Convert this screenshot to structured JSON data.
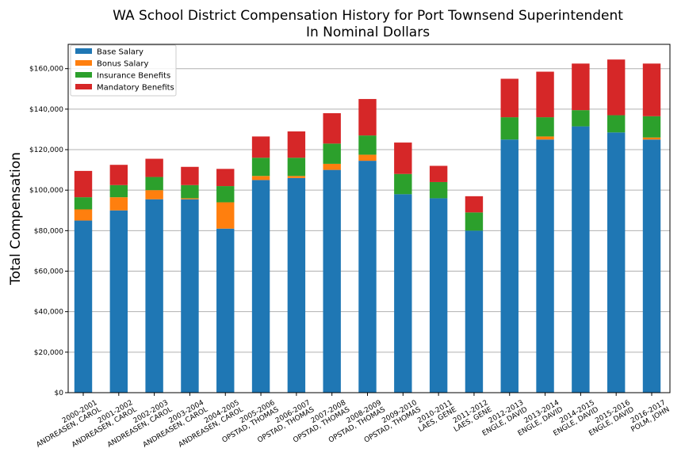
{
  "chart_data": {
    "type": "bar",
    "stacked": true,
    "title": "WA School District Compensation History for Port Townsend Superintendent",
    "subtitle": "In Nominal Dollars",
    "xlabel": "",
    "ylabel": "Total Compensation",
    "ylim": [
      0,
      172000
    ],
    "yticks": [
      0,
      20000,
      40000,
      60000,
      80000,
      100000,
      120000,
      140000,
      160000
    ],
    "ytick_labels": [
      "$0",
      "$20,000",
      "$40,000",
      "$60,000",
      "$80,000",
      "$100,000",
      "$120,000",
      "$140,000",
      "$160,000"
    ],
    "grid": "horizontal",
    "legend_position": "top-left",
    "categories": [
      [
        "2000-2001",
        "ANDREASEN, CAROL"
      ],
      [
        "2001-2002",
        "ANDREASEN, CAROL"
      ],
      [
        "2002-2003",
        "ANDREASEN, CAROL"
      ],
      [
        "2003-2004",
        "ANDREASEN, CAROL"
      ],
      [
        "2004-2005",
        "ANDREASEN, CAROL"
      ],
      [
        "2005-2006",
        "OPSTAD, THOMAS"
      ],
      [
        "2006-2007",
        "OPSTAD, THOMAS"
      ],
      [
        "2007-2008",
        "OPSTAD, THOMAS"
      ],
      [
        "2008-2009",
        "OPSTAD, THOMAS"
      ],
      [
        "2009-2010",
        "OPSTAD, THOMAS"
      ],
      [
        "2010-2011",
        "LAES, GENE"
      ],
      [
        "2011-2012",
        "LAES, GENE"
      ],
      [
        "2012-2013",
        "ENGLE, DAVID"
      ],
      [
        "2013-2014",
        "ENGLE, DAVID"
      ],
      [
        "2014-2015",
        "ENGLE, DAVID"
      ],
      [
        "2015-2016",
        "ENGLE, DAVID"
      ],
      [
        "2016-2017",
        "POLM, JOHN"
      ]
    ],
    "series": [
      {
        "name": "Base Salary",
        "color": "#1f77b4",
        "values": [
          85000,
          90000,
          95500,
          95500,
          81000,
          105000,
          106000,
          110000,
          114500,
          98000,
          96000,
          80000,
          125000,
          125000,
          131500,
          128500,
          125000
        ]
      },
      {
        "name": "Bonus Salary",
        "color": "#ff7f0e",
        "values": [
          5500,
          6500,
          4500,
          500,
          13000,
          2000,
          1000,
          3000,
          3000,
          0,
          0,
          0,
          0,
          1500,
          0,
          0,
          1000
        ]
      },
      {
        "name": "Insurance Benefits",
        "color": "#2ca02c",
        "values": [
          6000,
          6000,
          6500,
          6500,
          8000,
          9000,
          9000,
          10000,
          9500,
          10000,
          8000,
          9000,
          11000,
          9500,
          8000,
          8500,
          10500
        ]
      },
      {
        "name": "Mandatory Benefits",
        "color": "#d62728",
        "values": [
          13000,
          10000,
          9000,
          9000,
          8500,
          10500,
          13000,
          15000,
          18000,
          15500,
          8000,
          8000,
          19000,
          22500,
          23000,
          27500,
          26000
        ]
      }
    ]
  }
}
